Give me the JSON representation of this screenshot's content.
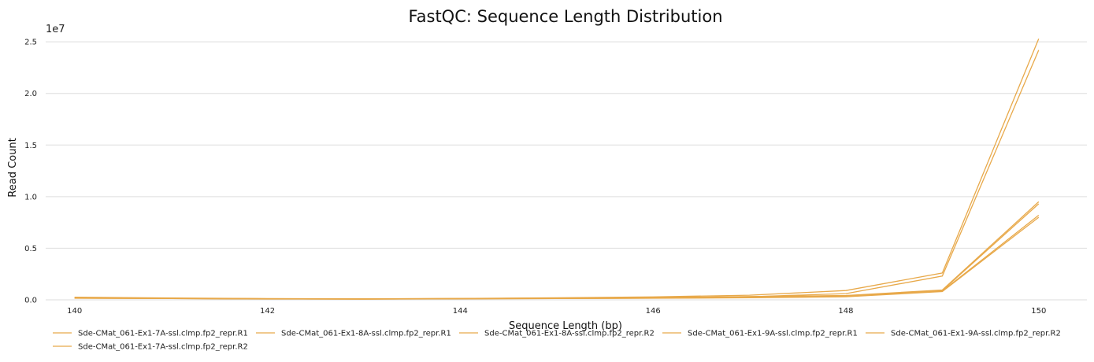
{
  "chart_data": {
    "type": "line",
    "title": "FastQC: Sequence Length Distribution",
    "xlabel": "Sequence Length (bp)",
    "ylabel": "Read Count",
    "y_multiplier_label": "1e7",
    "xlim": [
      139.7,
      150.5
    ],
    "ylim": [
      0,
      2.6
    ],
    "x_ticks": [
      140,
      142,
      144,
      146,
      148,
      150
    ],
    "x_tick_labels": [
      "140",
      "142",
      "144",
      "146",
      "148",
      "150"
    ],
    "y_ticks": [
      0,
      0.5,
      1.0,
      1.5,
      2.0,
      2.5
    ],
    "y_tick_labels": [
      "0.0",
      "0.5",
      "1.0",
      "1.5",
      "2.0",
      "2.5"
    ],
    "grid": "horizontal",
    "legend_position": "bottom",
    "series_color": "#e8a94a",
    "x": [
      140,
      141,
      142,
      143,
      144,
      145,
      146,
      147,
      148,
      149,
      150
    ],
    "series": [
      {
        "name": "Sde-CMat_061-Ex1-7A-ssl.clmp.fp2_repr.R1",
        "values": [
          0.02,
          0.015,
          0.01,
          0.008,
          0.01,
          0.015,
          0.02,
          0.03,
          0.06,
          0.23,
          2.42
        ]
      },
      {
        "name": "Sde-CMat_061-Ex1-8A-ssl.clmp.fp2_repr.R1",
        "values": [
          0.015,
          0.012,
          0.008,
          0.007,
          0.01,
          0.012,
          0.015,
          0.02,
          0.03,
          0.08,
          0.8
        ]
      },
      {
        "name": "Sde-CMat_061-Ex1-8A-ssl.clmp.fp2_repr.R2",
        "values": [
          0.018,
          0.014,
          0.009,
          0.008,
          0.012,
          0.016,
          0.02,
          0.03,
          0.04,
          0.09,
          0.93
        ]
      },
      {
        "name": "Sde-CMat_061-Ex1-9A-ssl.clmp.fp2_repr.R1",
        "values": [
          0.016,
          0.013,
          0.009,
          0.007,
          0.011,
          0.013,
          0.016,
          0.022,
          0.032,
          0.085,
          0.82
        ]
      },
      {
        "name": "Sde-CMat_061-Ex1-9A-ssl.clmp.fp2_repr.R2",
        "values": [
          0.02,
          0.015,
          0.01,
          0.009,
          0.012,
          0.017,
          0.022,
          0.032,
          0.042,
          0.095,
          0.95
        ]
      },
      {
        "name": "Sde-CMat_061-Ex1-7A-ssl.clmp.fp2_repr.R2",
        "values": [
          0.025,
          0.018,
          0.012,
          0.01,
          0.013,
          0.02,
          0.028,
          0.045,
          0.09,
          0.26,
          2.53
        ]
      }
    ]
  }
}
